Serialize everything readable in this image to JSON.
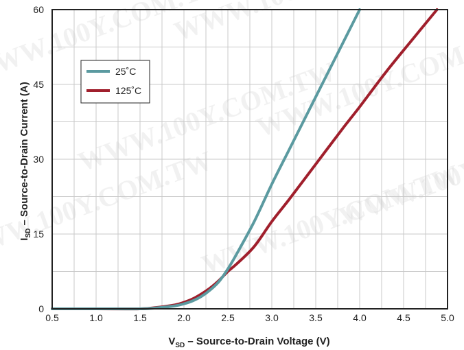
{
  "chart_data": {
    "type": "line",
    "title": "",
    "xlabel": {
      "main": "V",
      "sub": "SD",
      "rest": " – Source-to-Drain Voltage (V)"
    },
    "ylabel": {
      "main": "I",
      "sub": "SD",
      "rest": " – Source-to-Drain Current (A)"
    },
    "xlim": [
      0.5,
      5.0
    ],
    "ylim": [
      0,
      60
    ],
    "x_ticks": [
      "0.5",
      "1.0",
      "1.5",
      "2.0",
      "2.5",
      "3.0",
      "3.5",
      "4.0",
      "4.5",
      "5.0"
    ],
    "x_tick_values": [
      0.5,
      1.0,
      1.5,
      2.0,
      2.5,
      3.0,
      3.5,
      4.0,
      4.5,
      5.0
    ],
    "y_ticks": [
      "0",
      "15",
      "30",
      "45",
      "60"
    ],
    "y_tick_values": [
      0,
      15,
      30,
      45,
      60
    ],
    "grid": true,
    "legend_position": "top-left",
    "series": [
      {
        "name": "25˚C",
        "color": "#5b9aa0",
        "x": [
          0.5,
          1.0,
          1.5,
          1.7,
          1.9,
          2.0,
          2.1,
          2.2,
          2.3,
          2.4,
          2.5,
          2.6,
          2.8,
          3.0,
          3.2,
          3.4,
          3.6,
          3.8,
          4.0
        ],
        "y": [
          0,
          0,
          0,
          0.2,
          0.6,
          1.0,
          1.6,
          2.5,
          3.8,
          5.5,
          8.0,
          11.0,
          17.5,
          25.0,
          32.0,
          39.0,
          46.0,
          53.0,
          60.0
        ]
      },
      {
        "name": "125˚C",
        "color": "#a01f2c",
        "x": [
          0.5,
          1.0,
          1.5,
          1.7,
          1.9,
          2.0,
          2.1,
          2.2,
          2.3,
          2.4,
          2.5,
          2.6,
          2.8,
          3.0,
          3.2,
          3.5,
          3.8,
          4.0,
          4.3,
          4.6,
          4.88
        ],
        "y": [
          0,
          0,
          0,
          0.3,
          0.8,
          1.3,
          2.0,
          3.0,
          4.2,
          5.7,
          7.5,
          9.0,
          12.5,
          17.5,
          22.0,
          29.0,
          36.0,
          40.5,
          47.5,
          54.0,
          60.0
        ]
      }
    ]
  },
  "watermark": "WWW.100Y.COM.TW"
}
